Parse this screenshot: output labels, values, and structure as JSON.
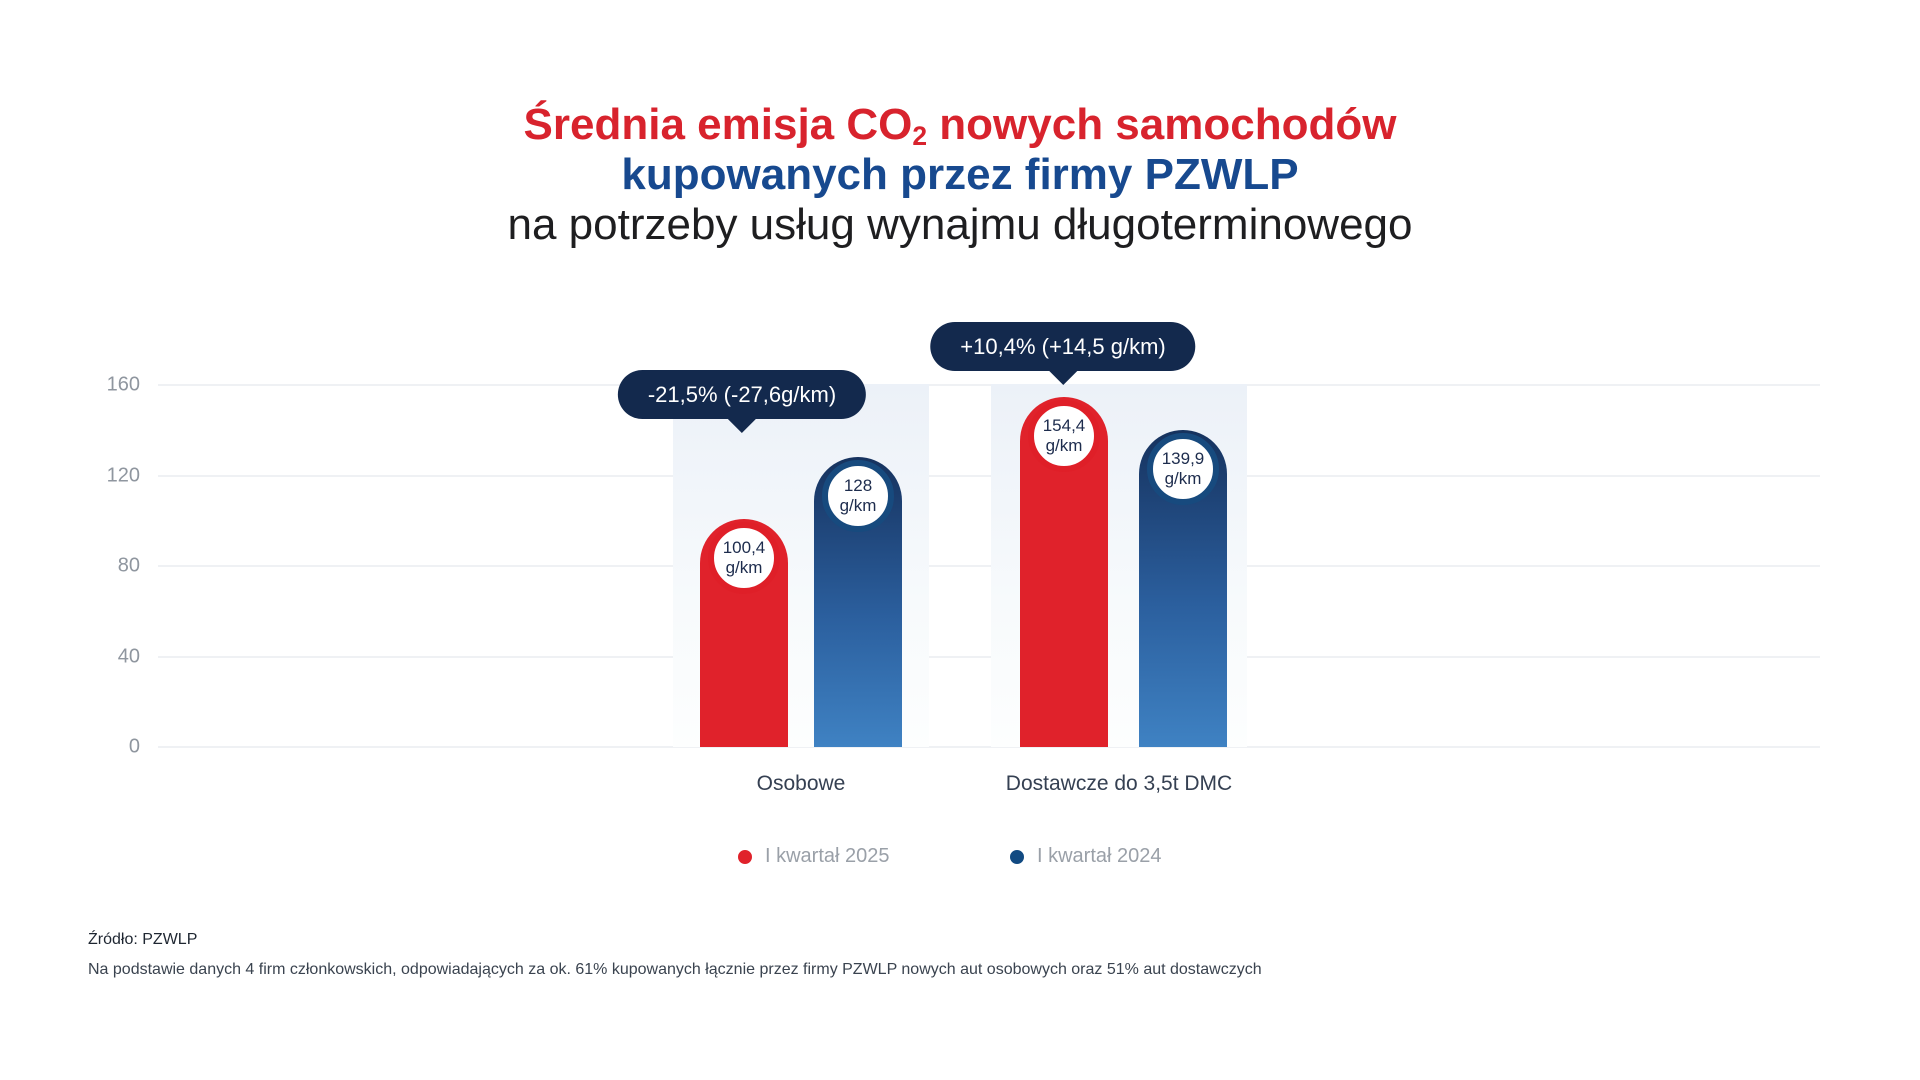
{
  "title": {
    "line1_pre": "Średnia emisja CO",
    "line1_sub": "2",
    "line1_post": " nowych samochodów",
    "line2": "kupowanych przez firmy PZWLP",
    "line3": "na potrzeby usług wynajmu długoterminowego"
  },
  "colors": {
    "title_red": "#d8232d",
    "title_navy": "#17498f",
    "bar_red": "#e0222b",
    "bar_blue_top": "#16325e",
    "bar_blue_bottom": "#3f82c3",
    "blue_ring": "#174a7e",
    "bubble_navy": "#13294d",
    "legend_blue": "#114a82",
    "axis_gray": "#8f969f"
  },
  "y_axis": {
    "ticks": [
      "160",
      "120",
      "80",
      "40",
      "0"
    ]
  },
  "chart_data": {
    "type": "bar",
    "title": "Średnia emisja CO2 nowych samochodów kupowanych przez firmy PZWLP na potrzeby usług wynajmu długoterminowego",
    "categories": [
      "Osobowe",
      "Dostawcze do 3,5t DMC"
    ],
    "series": [
      {
        "name": "I kwartał 2025",
        "values": [
          100.4,
          154.4
        ],
        "color": "#e0222b"
      },
      {
        "name": "I kwartał 2024",
        "values": [
          128,
          139.9
        ],
        "color": "#2b5f9e"
      }
    ],
    "unit": "g/km",
    "ylim": [
      0,
      160
    ],
    "yticks": [
      0,
      40,
      80,
      120,
      160
    ],
    "grid": true,
    "legend_position": "bottom",
    "annotations": [
      {
        "group": "Osobowe",
        "text": "-21,5% (-27,6g/km)"
      },
      {
        "group": "Dostawcze do 3,5t DMC",
        "text": "+10,4% (+14,5 g/km)"
      }
    ]
  },
  "groups": [
    {
      "label": "Osobowe",
      "annotation": "-21,5% (-27,6g/km)",
      "bars": [
        {
          "series": "I kwartał 2025",
          "value": 100.4,
          "value_label": "100,4",
          "unit": "g/km"
        },
        {
          "series": "I kwartał 2024",
          "value": 128,
          "value_label": "128",
          "unit": "g/km"
        }
      ]
    },
    {
      "label": "Dostawcze do 3,5t DMC",
      "annotation": "+10,4% (+14,5 g/km)",
      "bars": [
        {
          "series": "I kwartał 2025",
          "value": 154.4,
          "value_label": "154,4",
          "unit": "g/km"
        },
        {
          "series": "I kwartał 2024",
          "value": 139.9,
          "value_label": "139,9",
          "unit": "g/km"
        }
      ]
    }
  ],
  "legend": [
    {
      "label": "I kwartał 2025",
      "color": "#e0222b"
    },
    {
      "label": "I kwartał 2024",
      "color": "#114a82"
    }
  ],
  "footer": {
    "source": "Źródło: PZWLP",
    "note": "Na podstawie danych 4 firm członkowskich, odpowiadających za ok. 61% kupowanych łącznie przez firmy PZWLP nowych aut osobowych oraz 51% aut dostawczych"
  }
}
